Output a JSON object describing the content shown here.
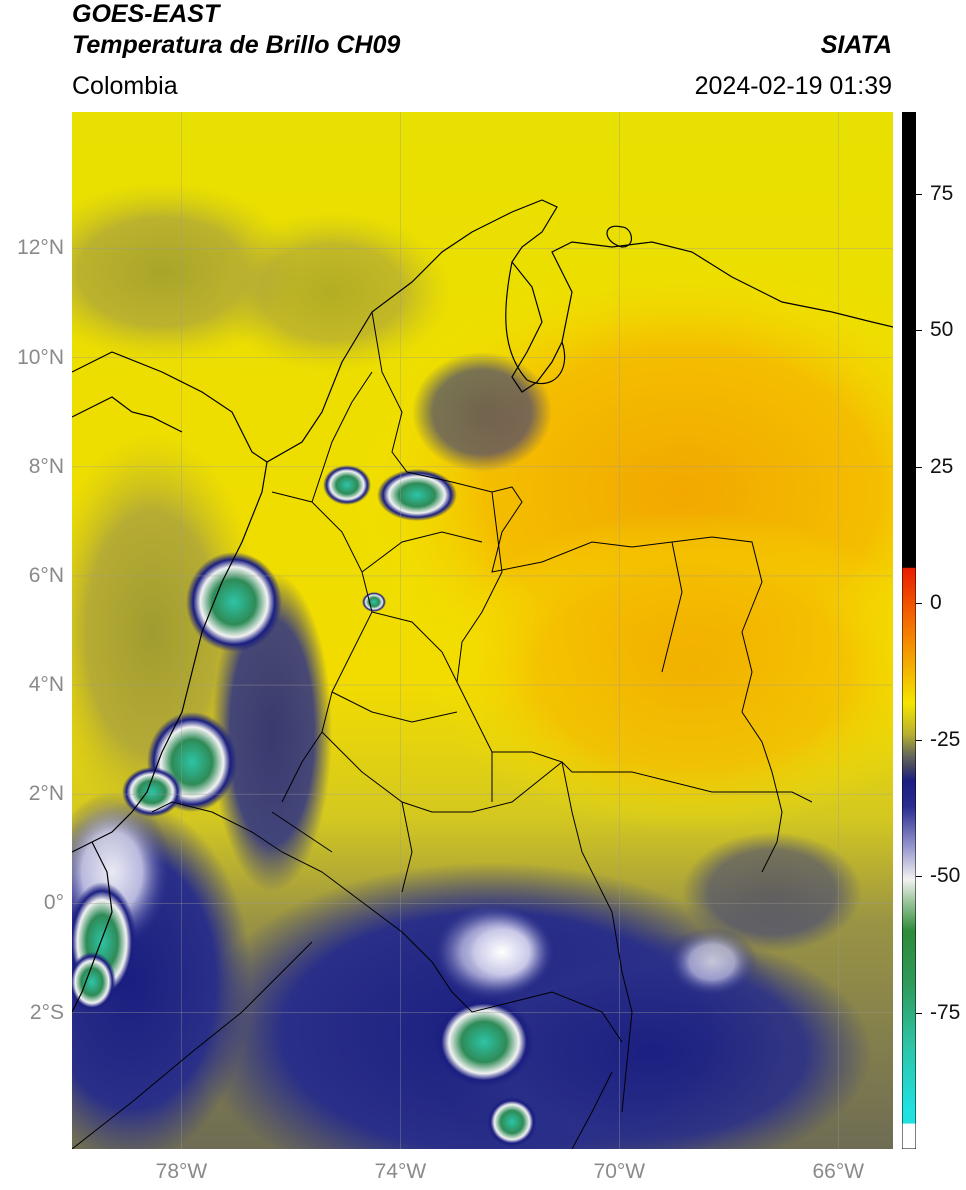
{
  "header": {
    "line1": "GOES-EAST",
    "line2": "Temperatura de Brillo CH09",
    "source": "SIATA",
    "region": "Colombia",
    "timestamp": "2024-02-19 01:39"
  },
  "map": {
    "lon_range": [
      -80,
      -65
    ],
    "lat_range": [
      -4.5,
      14.5
    ],
    "lat_ticks": [
      {
        "value": 12,
        "label": "12°N"
      },
      {
        "value": 10,
        "label": "10°N"
      },
      {
        "value": 8,
        "label": "8°N"
      },
      {
        "value": 6,
        "label": "6°N"
      },
      {
        "value": 4,
        "label": "4°N"
      },
      {
        "value": 2,
        "label": "2°N"
      },
      {
        "value": 0,
        "label": "0°"
      },
      {
        "value": -2,
        "label": "2°S"
      }
    ],
    "lon_ticks": [
      {
        "value": -78,
        "label": "78°W"
      },
      {
        "value": -74,
        "label": "74°W"
      },
      {
        "value": -70,
        "label": "70°W"
      },
      {
        "value": -66,
        "label": "66°W"
      }
    ],
    "colors": {
      "background_yellow": "#f4e600",
      "warm_orange": "#f4b400",
      "olive": "#a8a040",
      "navy": "#1a1e80",
      "white": "#f2f2f2",
      "green": "#2e8b57",
      "teal": "#2ec4a6"
    }
  },
  "colorbar": {
    "ticks": [
      {
        "value": 75,
        "label": "75"
      },
      {
        "value": 50,
        "label": "50"
      },
      {
        "value": 25,
        "label": "25"
      },
      {
        "value": 0,
        "label": "0"
      },
      {
        "value": -25,
        "label": "-25"
      },
      {
        "value": -50,
        "label": "-50"
      },
      {
        "value": -75,
        "label": "-75"
      }
    ],
    "range": [
      -100,
      90
    ]
  }
}
